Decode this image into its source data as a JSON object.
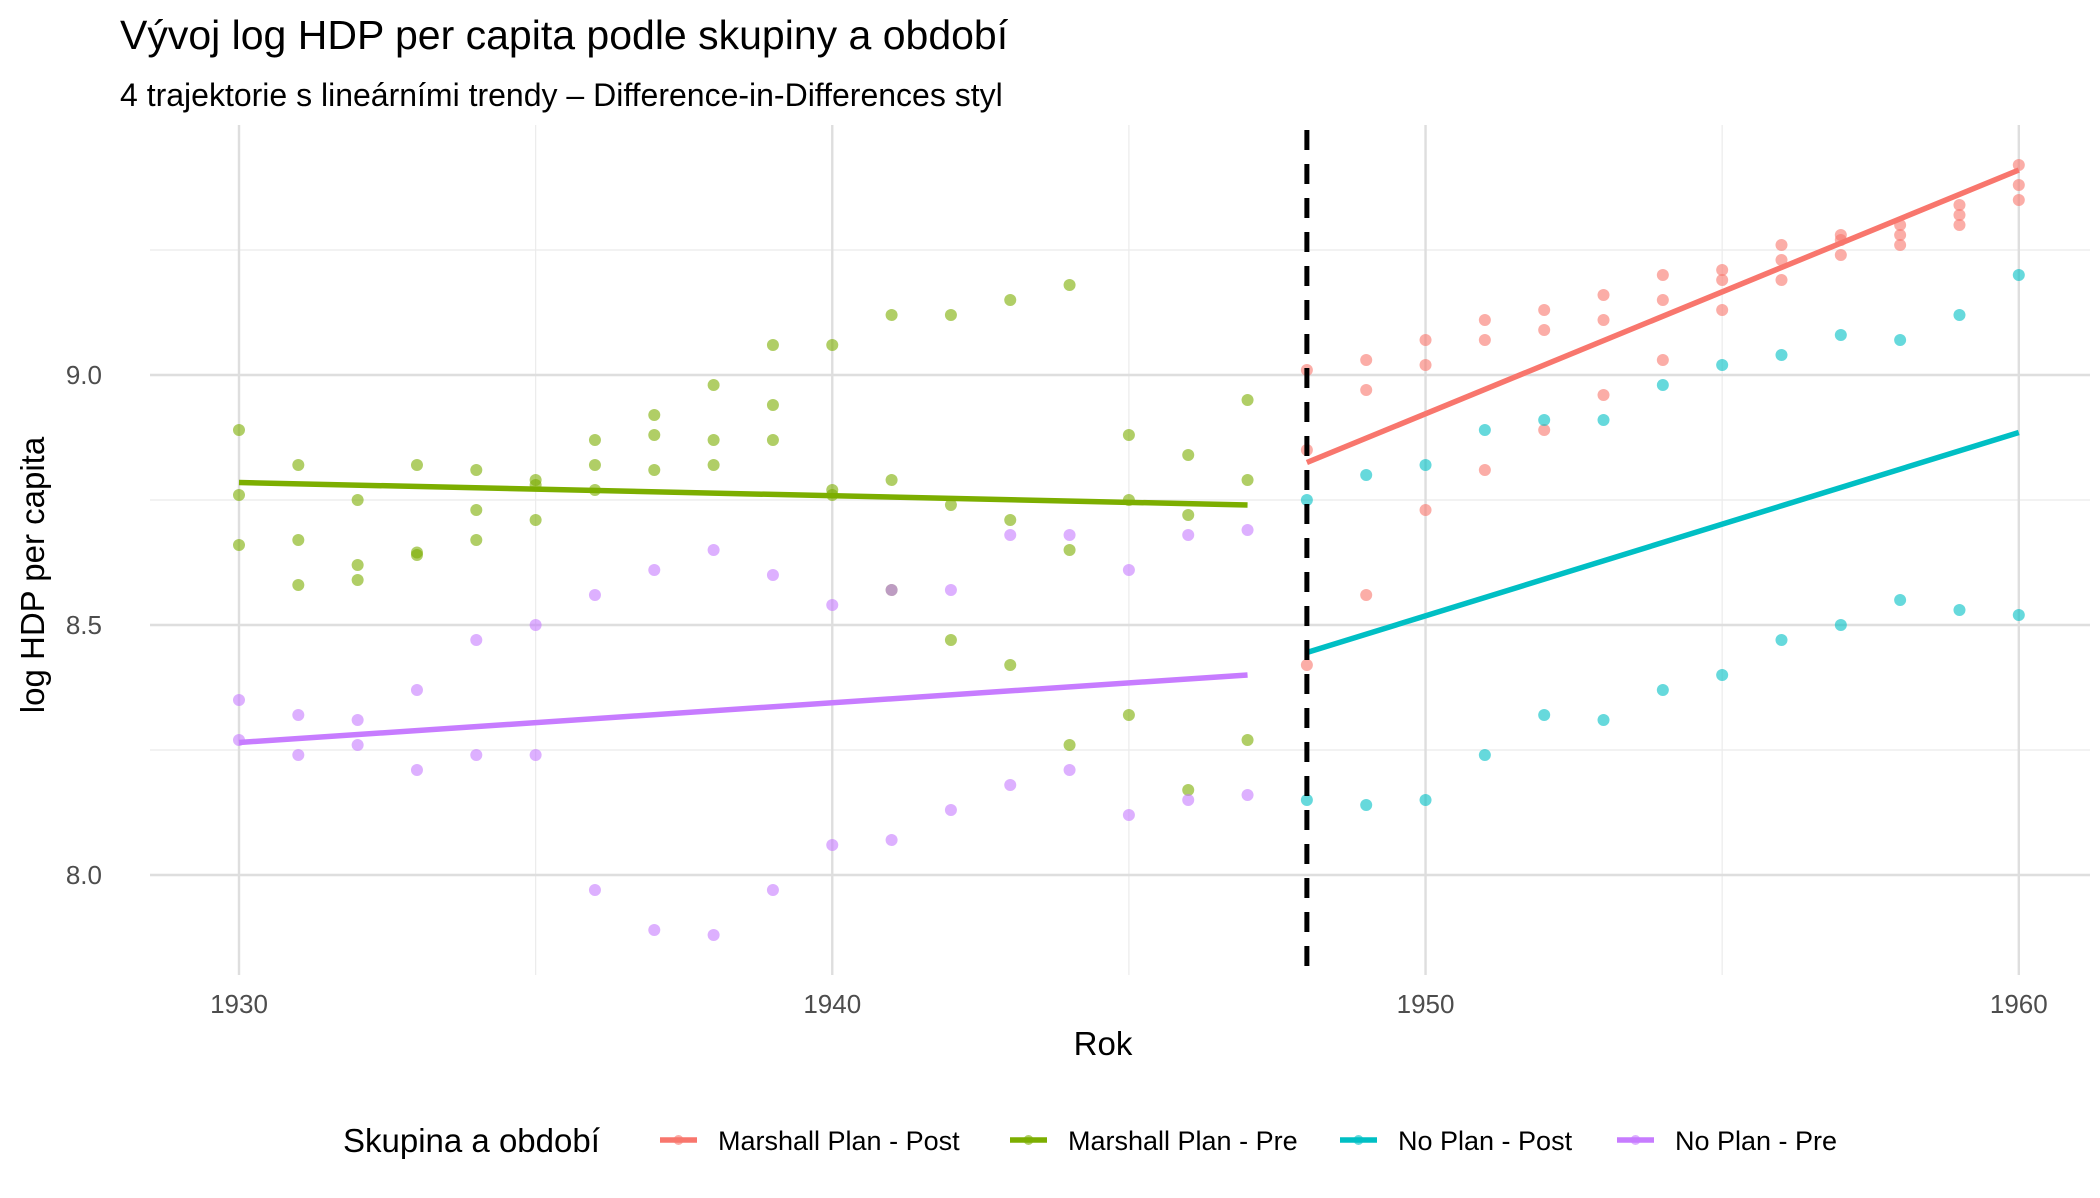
{
  "chart_data": {
    "type": "scatter",
    "title": "Vývoj log HDP per capita podle skupiny a období",
    "subtitle": "4 trajektorie s lineárními trendy – Difference-in-Differences styl",
    "xlabel": "Rok",
    "ylabel": "log HDP per capita",
    "xlim": [
      1928.5,
      1961.2
    ],
    "ylim": [
      7.8,
      9.5
    ],
    "x_ticks": [
      1930,
      1940,
      1950,
      1960
    ],
    "y_ticks": [
      8.0,
      8.5,
      9.0
    ],
    "x_tick_labels": [
      "1930",
      "1940",
      "1950",
      "1960"
    ],
    "y_tick_labels": [
      "8.0",
      "8.5",
      "9.0"
    ],
    "grid": true,
    "vline": {
      "x": 1948,
      "style": "dashed",
      "color": "#000000"
    },
    "legend": {
      "title": "Skupina a období",
      "position": "bottom"
    },
    "series": [
      {
        "name": "Marshall Plan - Post",
        "color": "#F8766D",
        "trend": [
          [
            1948,
            8.825
          ],
          [
            1960,
            9.41
          ]
        ],
        "points": [
          [
            1948,
            9.01
          ],
          [
            1948,
            8.85
          ],
          [
            1948,
            8.42
          ],
          [
            1949,
            9.03
          ],
          [
            1949,
            8.97
          ],
          [
            1949,
            8.56
          ],
          [
            1950,
            9.07
          ],
          [
            1950,
            9.02
          ],
          [
            1950,
            8.73
          ],
          [
            1951,
            9.11
          ],
          [
            1951,
            9.07
          ],
          [
            1951,
            8.81
          ],
          [
            1952,
            9.13
          ],
          [
            1952,
            9.09
          ],
          [
            1952,
            8.89
          ],
          [
            1953,
            9.16
          ],
          [
            1953,
            9.11
          ],
          [
            1953,
            8.96
          ],
          [
            1954,
            9.2
          ],
          [
            1954,
            9.15
          ],
          [
            1954,
            9.03
          ],
          [
            1955,
            9.21
          ],
          [
            1955,
            9.19
          ],
          [
            1955,
            9.13
          ],
          [
            1956,
            9.26
          ],
          [
            1956,
            9.23
          ],
          [
            1956,
            9.19
          ],
          [
            1957,
            9.28
          ],
          [
            1957,
            9.27
          ],
          [
            1957,
            9.24
          ],
          [
            1958,
            9.3
          ],
          [
            1958,
            9.28
          ],
          [
            1958,
            9.26
          ],
          [
            1959,
            9.34
          ],
          [
            1959,
            9.32
          ],
          [
            1959,
            9.3
          ],
          [
            1960,
            9.42
          ],
          [
            1960,
            9.38
          ],
          [
            1960,
            9.35
          ]
        ]
      },
      {
        "name": "Marshall Plan - Pre",
        "color": "#7CAE00",
        "trend": [
          [
            1930,
            8.785
          ],
          [
            1947,
            8.74
          ]
        ],
        "points": [
          [
            1930,
            8.89
          ],
          [
            1930,
            8.76
          ],
          [
            1930,
            8.66
          ],
          [
            1931,
            8.82
          ],
          [
            1931,
            8.67
          ],
          [
            1931,
            8.58
          ],
          [
            1932,
            8.75
          ],
          [
            1932,
            8.62
          ],
          [
            1932,
            8.59
          ],
          [
            1933,
            8.82
          ],
          [
            1933,
            8.645
          ],
          [
            1933,
            8.64
          ],
          [
            1934,
            8.81
          ],
          [
            1934,
            8.73
          ],
          [
            1934,
            8.67
          ],
          [
            1935,
            8.79
          ],
          [
            1935,
            8.78
          ],
          [
            1935,
            8.71
          ],
          [
            1936,
            8.87
          ],
          [
            1936,
            8.82
          ],
          [
            1936,
            8.77
          ],
          [
            1937,
            8.92
          ],
          [
            1937,
            8.88
          ],
          [
            1937,
            8.81
          ],
          [
            1938,
            8.98
          ],
          [
            1938,
            8.87
          ],
          [
            1938,
            8.82
          ],
          [
            1939,
            9.06
          ],
          [
            1939,
            8.94
          ],
          [
            1939,
            8.87
          ],
          [
            1940,
            9.06
          ],
          [
            1940,
            8.77
          ],
          [
            1940,
            8.76
          ],
          [
            1941,
            9.12
          ],
          [
            1941,
            8.79
          ],
          [
            1941,
            8.57
          ],
          [
            1942,
            9.12
          ],
          [
            1942,
            8.74
          ],
          [
            1942,
            8.47
          ],
          [
            1943,
            9.15
          ],
          [
            1943,
            8.71
          ],
          [
            1943,
            8.42
          ],
          [
            1944,
            9.18
          ],
          [
            1944,
            8.65
          ],
          [
            1944,
            8.26
          ],
          [
            1945,
            8.88
          ],
          [
            1945,
            8.75
          ],
          [
            1945,
            8.32
          ],
          [
            1946,
            8.84
          ],
          [
            1946,
            8.72
          ],
          [
            1946,
            8.17
          ],
          [
            1947,
            8.95
          ],
          [
            1947,
            8.79
          ],
          [
            1947,
            8.27
          ]
        ]
      },
      {
        "name": "No Plan - Post",
        "color": "#00BFC4",
        "trend": [
          [
            1948,
            8.445
          ],
          [
            1960,
            8.885
          ]
        ],
        "points": [
          [
            1948,
            8.75
          ],
          [
            1948,
            8.15
          ],
          [
            1949,
            8.8
          ],
          [
            1949,
            8.14
          ],
          [
            1950,
            8.82
          ],
          [
            1950,
            8.15
          ],
          [
            1951,
            8.89
          ],
          [
            1951,
            8.24
          ],
          [
            1952,
            8.91
          ],
          [
            1952,
            8.32
          ],
          [
            1953,
            8.91
          ],
          [
            1953,
            8.31
          ],
          [
            1954,
            8.98
          ],
          [
            1954,
            8.37
          ],
          [
            1955,
            9.02
          ],
          [
            1955,
            8.4
          ],
          [
            1956,
            9.04
          ],
          [
            1956,
            8.47
          ],
          [
            1957,
            9.08
          ],
          [
            1957,
            8.5
          ],
          [
            1958,
            9.07
          ],
          [
            1958,
            8.55
          ],
          [
            1959,
            9.12
          ],
          [
            1959,
            8.53
          ],
          [
            1960,
            9.2
          ],
          [
            1960,
            8.52
          ]
        ]
      },
      {
        "name": "No Plan - Pre",
        "color": "#C77CFF",
        "trend": [
          [
            1930,
            8.265
          ],
          [
            1947,
            8.4
          ]
        ],
        "points": [
          [
            1930,
            8.35
          ],
          [
            1930,
            8.27
          ],
          [
            1931,
            8.32
          ],
          [
            1931,
            8.24
          ],
          [
            1932,
            8.31
          ],
          [
            1932,
            8.26
          ],
          [
            1933,
            8.37
          ],
          [
            1933,
            8.21
          ],
          [
            1934,
            8.47
          ],
          [
            1934,
            8.24
          ],
          [
            1935,
            8.5
          ],
          [
            1935,
            8.24
          ],
          [
            1936,
            8.56
          ],
          [
            1936,
            7.97
          ],
          [
            1937,
            8.61
          ],
          [
            1937,
            7.89
          ],
          [
            1938,
            8.65
          ],
          [
            1938,
            7.88
          ],
          [
            1939,
            8.6
          ],
          [
            1939,
            7.97
          ],
          [
            1940,
            8.54
          ],
          [
            1940,
            8.06
          ],
          [
            1941,
            8.57
          ],
          [
            1941,
            8.07
          ],
          [
            1942,
            8.57
          ],
          [
            1942,
            8.13
          ],
          [
            1943,
            8.68
          ],
          [
            1943,
            8.18
          ],
          [
            1944,
            8.68
          ],
          [
            1944,
            8.21
          ],
          [
            1945,
            8.61
          ],
          [
            1945,
            8.12
          ],
          [
            1946,
            8.68
          ],
          [
            1946,
            8.15
          ],
          [
            1947,
            8.69
          ],
          [
            1947,
            8.16
          ]
        ]
      }
    ]
  }
}
